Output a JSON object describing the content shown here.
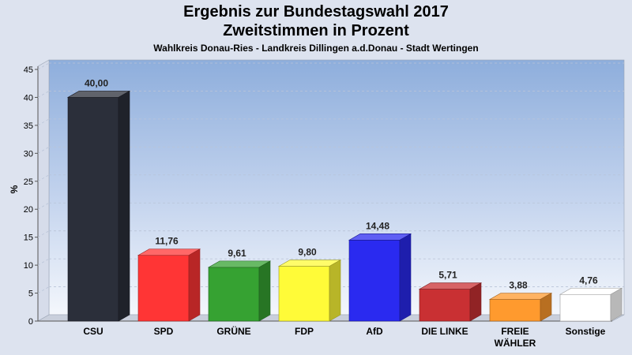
{
  "chart_data": {
    "type": "bar",
    "title": "Ergebnis zur Bundestagswahl 2017",
    "subtitle": "Zweitstimmen in Prozent",
    "subsubtitle": "Wahlkreis Donau-Ries - Landkreis Dillingen a.d.Donau - Stadt Wertingen",
    "ylabel": "%",
    "ylim": [
      0,
      45
    ],
    "yticks": [
      0,
      5,
      10,
      15,
      20,
      25,
      30,
      35,
      40,
      45
    ],
    "categories": [
      "CSU",
      "SPD",
      "GRÜNE",
      "FDP",
      "AfD",
      "DIE LINKE",
      "FREIE WÄHLER",
      "Sonstige"
    ],
    "category_lines": [
      [
        "CSU"
      ],
      [
        "SPD"
      ],
      [
        "GRÜNE"
      ],
      [
        "FDP"
      ],
      [
        "AfD"
      ],
      [
        "DIE LINKE"
      ],
      [
        "FREIE",
        "WÄHLER"
      ],
      [
        "Sonstige"
      ]
    ],
    "values": [
      40.0,
      11.76,
      9.61,
      9.8,
      14.48,
      5.71,
      3.88,
      4.76
    ],
    "value_labels": [
      "40,00",
      "11,76",
      "9,61",
      "9,80",
      "14,48",
      "5,71",
      "3,88",
      "4,76"
    ],
    "colors": [
      "#2b2f3a",
      "#ff3535",
      "#36a232",
      "#fffb38",
      "#2a2af0",
      "#c93033",
      "#ff9a2e",
      "#ffffff"
    ],
    "grid": true,
    "legend": "none"
  }
}
